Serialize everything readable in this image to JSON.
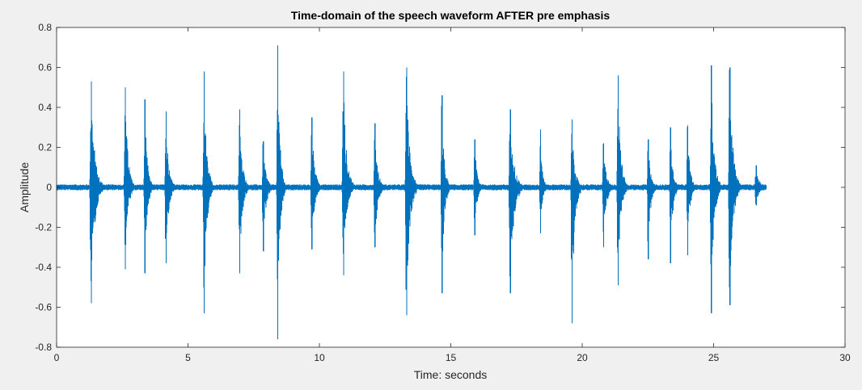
{
  "chart_data": {
    "type": "line",
    "title": "Time-domain of the speech waveform AFTER pre emphasis",
    "xlabel": "Time: seconds",
    "ylabel": "Amplitude",
    "xlim": [
      0,
      30
    ],
    "ylim": [
      -0.8,
      0.8
    ],
    "xticks": [
      0,
      5,
      10,
      15,
      20,
      25,
      30
    ],
    "yticks": [
      -0.8,
      -0.6,
      -0.4,
      -0.2,
      0,
      0.2,
      0.4,
      0.6,
      0.8
    ],
    "grid": false,
    "legend": "none",
    "line_color": "#0072bd",
    "signal_duration": 27.0,
    "noise_floor_amplitude": 0.015,
    "bursts": [
      {
        "t": 1.3,
        "duration": 0.45,
        "max": 0.53,
        "min": -0.58
      },
      {
        "t": 2.6,
        "duration": 0.35,
        "max": 0.5,
        "min": -0.41
      },
      {
        "t": 3.35,
        "duration": 0.3,
        "max": 0.44,
        "min": -0.43
      },
      {
        "t": 4.15,
        "duration": 0.35,
        "max": 0.38,
        "min": -0.38
      },
      {
        "t": 5.6,
        "duration": 0.35,
        "max": 0.58,
        "min": -0.63
      },
      {
        "t": 6.95,
        "duration": 0.35,
        "max": 0.39,
        "min": -0.43
      },
      {
        "t": 7.85,
        "duration": 0.35,
        "max": 0.23,
        "min": -0.32
      },
      {
        "t": 8.4,
        "duration": 0.3,
        "max": 0.71,
        "min": -0.76
      },
      {
        "t": 9.7,
        "duration": 0.35,
        "max": 0.35,
        "min": -0.31
      },
      {
        "t": 10.9,
        "duration": 0.4,
        "max": 0.58,
        "min": -0.44
      },
      {
        "t": 12.1,
        "duration": 0.35,
        "max": 0.32,
        "min": -0.3
      },
      {
        "t": 13.3,
        "duration": 0.4,
        "max": 0.6,
        "min": -0.64
      },
      {
        "t": 14.65,
        "duration": 0.3,
        "max": 0.46,
        "min": -0.53
      },
      {
        "t": 15.9,
        "duration": 0.3,
        "max": 0.24,
        "min": -0.24
      },
      {
        "t": 17.25,
        "duration": 0.45,
        "max": 0.39,
        "min": -0.53
      },
      {
        "t": 18.4,
        "duration": 0.25,
        "max": 0.29,
        "min": -0.23
      },
      {
        "t": 19.6,
        "duration": 0.35,
        "max": 0.34,
        "min": -0.68
      },
      {
        "t": 20.8,
        "duration": 0.35,
        "max": 0.22,
        "min": -0.3
      },
      {
        "t": 21.35,
        "duration": 0.35,
        "max": 0.56,
        "min": -0.49
      },
      {
        "t": 22.5,
        "duration": 0.3,
        "max": 0.24,
        "min": -0.36
      },
      {
        "t": 23.35,
        "duration": 0.3,
        "max": 0.3,
        "min": -0.38
      },
      {
        "t": 24.0,
        "duration": 0.3,
        "max": 0.31,
        "min": -0.34
      },
      {
        "t": 24.9,
        "duration": 0.35,
        "max": 0.61,
        "min": -0.63
      },
      {
        "t": 25.6,
        "duration": 0.4,
        "max": 0.6,
        "min": -0.59
      },
      {
        "t": 26.6,
        "duration": 0.4,
        "max": 0.11,
        "min": -0.09
      }
    ]
  }
}
